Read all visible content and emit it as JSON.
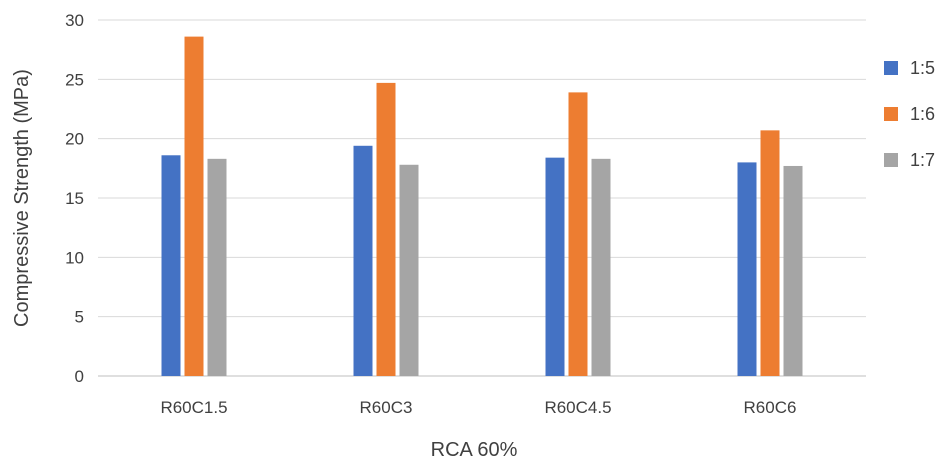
{
  "chart_data": {
    "type": "bar",
    "title": "",
    "xlabel": "RCA 60%",
    "ylabel": "Compressive Strength (MPa)",
    "ylim": [
      0,
      30
    ],
    "yticks": [
      0,
      5,
      10,
      15,
      20,
      25,
      30
    ],
    "grid": true,
    "legend_position": "right",
    "categories": [
      "R60C1.5",
      "R60C3",
      "R60C4.5",
      "R60C6"
    ],
    "series": [
      {
        "name": "1:5",
        "color": "#4472C4",
        "values": [
          18.6,
          19.4,
          18.4,
          18.0
        ]
      },
      {
        "name": "1:6",
        "color": "#ED7D31",
        "values": [
          28.6,
          24.7,
          23.9,
          20.7
        ]
      },
      {
        "name": "1:7",
        "color": "#A5A5A5",
        "values": [
          18.3,
          17.8,
          18.3,
          17.7
        ]
      }
    ]
  }
}
